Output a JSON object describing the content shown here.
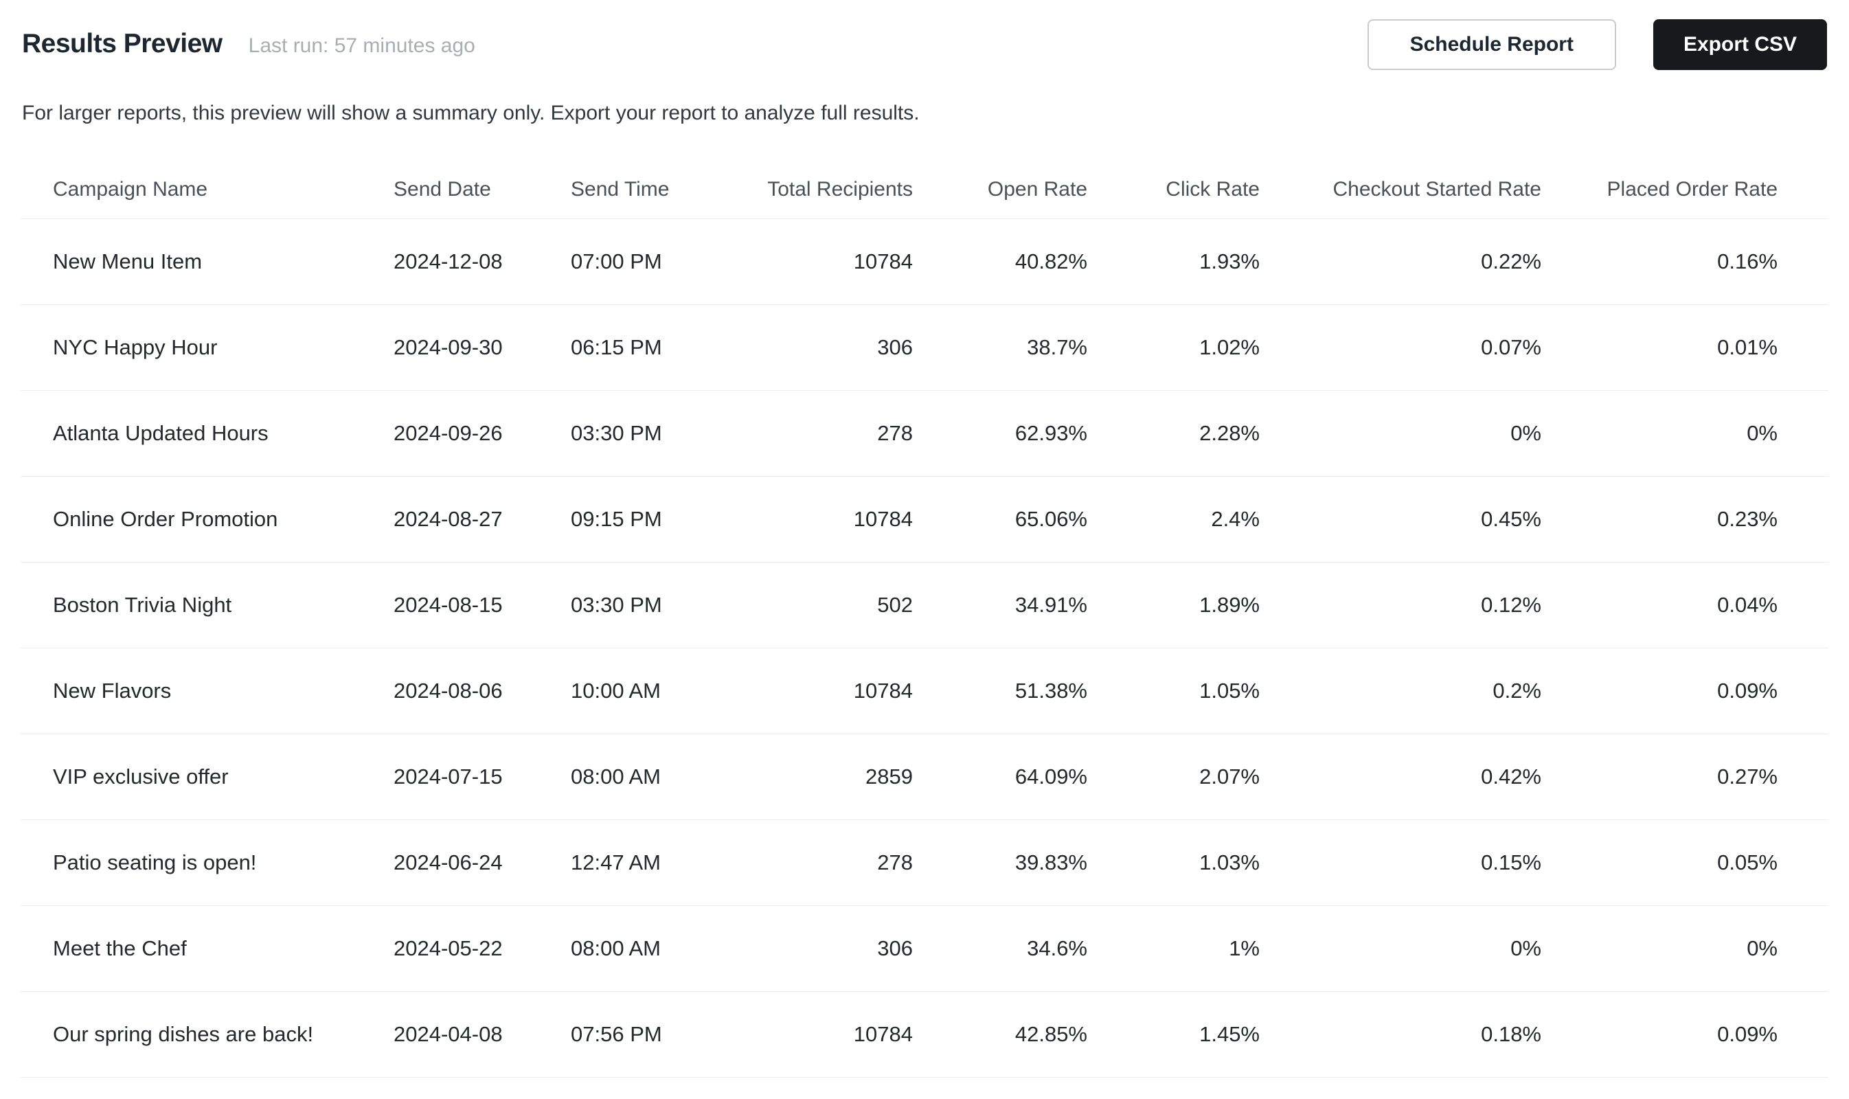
{
  "header": {
    "title": "Results Preview",
    "last_run": "Last run: 57 minutes ago",
    "subtitle": "For larger reports, this preview will show a summary only. Export your report to analyze full results.",
    "schedule_report_label": "Schedule Report",
    "export_csv_label": "Export CSV"
  },
  "table": {
    "columns": [
      "Campaign Name",
      "Send Date",
      "Send Time",
      "Total Recipients",
      "Open Rate",
      "Click Rate",
      "Checkout Started Rate",
      "Placed Order Rate"
    ],
    "rows": [
      {
        "campaign_name": "New Menu Item",
        "send_date": "2024-12-08",
        "send_time": "07:00 PM",
        "total_recipients": "10784",
        "open_rate": "40.82%",
        "click_rate": "1.93%",
        "checkout_started_rate": "0.22%",
        "placed_order_rate": "0.16%"
      },
      {
        "campaign_name": "NYC Happy Hour",
        "send_date": "2024-09-30",
        "send_time": "06:15 PM",
        "total_recipients": "306",
        "open_rate": "38.7%",
        "click_rate": "1.02%",
        "checkout_started_rate": "0.07%",
        "placed_order_rate": "0.01%"
      },
      {
        "campaign_name": "Atlanta Updated Hours",
        "send_date": "2024-09-26",
        "send_time": "03:30 PM",
        "total_recipients": "278",
        "open_rate": "62.93%",
        "click_rate": "2.28%",
        "checkout_started_rate": "0%",
        "placed_order_rate": "0%"
      },
      {
        "campaign_name": "Online Order Promotion",
        "send_date": "2024-08-27",
        "send_time": "09:15 PM",
        "total_recipients": "10784",
        "open_rate": "65.06%",
        "click_rate": "2.4%",
        "checkout_started_rate": "0.45%",
        "placed_order_rate": "0.23%"
      },
      {
        "campaign_name": "Boston Trivia Night",
        "send_date": "2024-08-15",
        "send_time": "03:30 PM",
        "total_recipients": "502",
        "open_rate": "34.91%",
        "click_rate": "1.89%",
        "checkout_started_rate": "0.12%",
        "placed_order_rate": "0.04%"
      },
      {
        "campaign_name": "New Flavors",
        "send_date": "2024-08-06",
        "send_time": "10:00 AM",
        "total_recipients": "10784",
        "open_rate": "51.38%",
        "click_rate": "1.05%",
        "checkout_started_rate": "0.2%",
        "placed_order_rate": "0.09%"
      },
      {
        "campaign_name": "VIP exclusive offer",
        "send_date": "2024-07-15",
        "send_time": "08:00 AM",
        "total_recipients": "2859",
        "open_rate": "64.09%",
        "click_rate": "2.07%",
        "checkout_started_rate": "0.42%",
        "placed_order_rate": "0.27%"
      },
      {
        "campaign_name": "Patio seating is open!",
        "send_date": "2024-06-24",
        "send_time": "12:47 AM",
        "total_recipients": "278",
        "open_rate": "39.83%",
        "click_rate": "1.03%",
        "checkout_started_rate": "0.15%",
        "placed_order_rate": "0.05%"
      },
      {
        "campaign_name": "Meet the Chef",
        "send_date": "2024-05-22",
        "send_time": "08:00 AM",
        "total_recipients": "306",
        "open_rate": "34.6%",
        "click_rate": "1%",
        "checkout_started_rate": "0%",
        "placed_order_rate": "0%"
      },
      {
        "campaign_name": "Our spring dishes are back!",
        "send_date": "2024-04-08",
        "send_time": "07:56 PM",
        "total_recipients": "10784",
        "open_rate": "42.85%",
        "click_rate": "1.45%",
        "checkout_started_rate": "0.18%",
        "placed_order_rate": "0.09%"
      }
    ]
  },
  "colors": {
    "title-color": "#1d2730",
    "muted-color": "#a8aeb2",
    "subtitle-color": "#2f383e",
    "th-color": "#4a5156",
    "td-color": "#23282c",
    "divider": "#ededee",
    "btn-dark": "#17191c",
    "btn-border": "#c9cccd"
  }
}
